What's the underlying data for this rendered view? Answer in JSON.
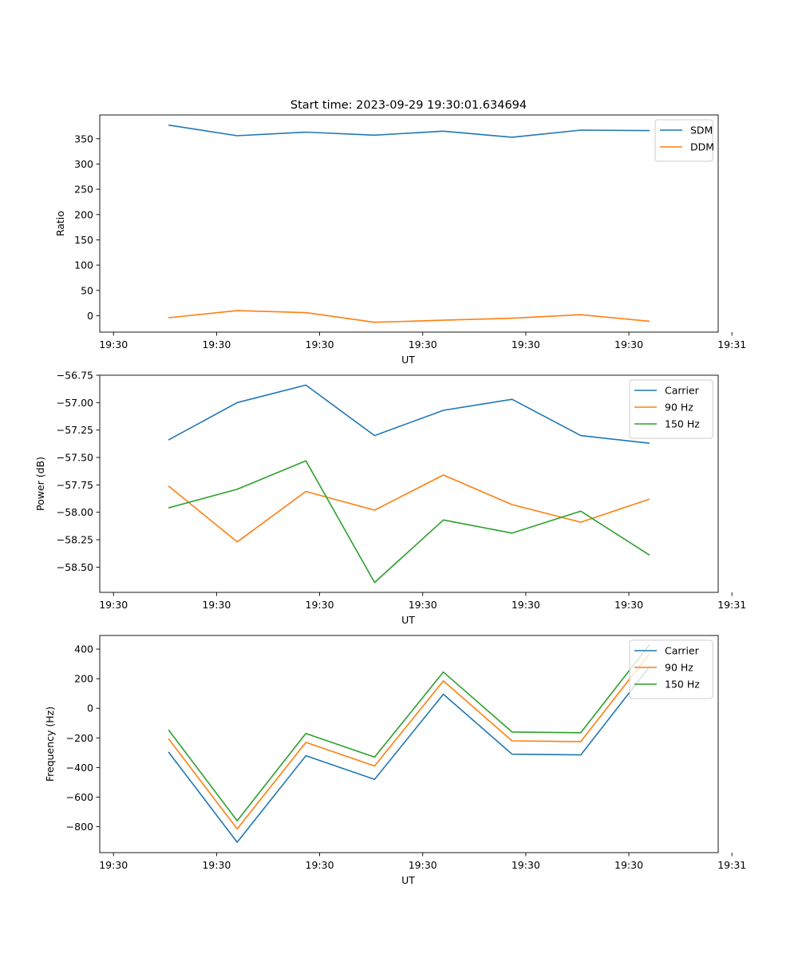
{
  "title": "Start time: 2023-09-29 19:30:01.634694",
  "chart_data": [
    {
      "type": "line",
      "xlabel": "UT",
      "ylabel": "Ratio",
      "xlim": [
        0,
        9
      ],
      "ylim": [
        -32.5,
        397
      ],
      "x_ticks": [
        {
          "v": 0.2,
          "label": "19:30"
        },
        {
          "v": 1.7,
          "label": "19:30"
        },
        {
          "v": 3.2,
          "label": "19:30"
        },
        {
          "v": 4.7,
          "label": "19:30"
        },
        {
          "v": 6.2,
          "label": "19:30"
        },
        {
          "v": 7.7,
          "label": "19:30"
        },
        {
          "v": 9.2,
          "label": "19:31"
        }
      ],
      "y_ticks": [
        {
          "v": 0,
          "label": "0"
        },
        {
          "v": 50,
          "label": "50"
        },
        {
          "v": 100,
          "label": "100"
        },
        {
          "v": 150,
          "label": "150"
        },
        {
          "v": 200,
          "label": "200"
        },
        {
          "v": 250,
          "label": "250"
        },
        {
          "v": 300,
          "label": "300"
        },
        {
          "v": 350,
          "label": "350"
        }
      ],
      "legend_location": "upper right",
      "x": [
        1,
        2,
        3,
        4,
        5,
        6,
        7,
        8
      ],
      "series": [
        {
          "name": "SDM",
          "color": "#1f77b4",
          "values": [
            377,
            356,
            363,
            357,
            365,
            353,
            367,
            366
          ]
        },
        {
          "name": "DDM",
          "color": "#ff7f0e",
          "values": [
            -4,
            10,
            6,
            -13,
            -9,
            -5,
            2,
            -11
          ]
        }
      ]
    },
    {
      "type": "line",
      "xlabel": "UT",
      "ylabel": "Power (dB)",
      "xlim": [
        0,
        9
      ],
      "ylim": [
        -58.73,
        -56.75
      ],
      "x_ticks": [
        {
          "v": 0.2,
          "label": "19:30"
        },
        {
          "v": 1.7,
          "label": "19:30"
        },
        {
          "v": 3.2,
          "label": "19:30"
        },
        {
          "v": 4.7,
          "label": "19:30"
        },
        {
          "v": 6.2,
          "label": "19:30"
        },
        {
          "v": 7.7,
          "label": "19:30"
        },
        {
          "v": 9.2,
          "label": "19:31"
        }
      ],
      "y_ticks": [
        {
          "v": -56.75,
          "label": "−56.75"
        },
        {
          "v": -57.0,
          "label": "−57.00"
        },
        {
          "v": -57.25,
          "label": "−57.25"
        },
        {
          "v": -57.5,
          "label": "−57.50"
        },
        {
          "v": -57.75,
          "label": "−57.75"
        },
        {
          "v": -58.0,
          "label": "−58.00"
        },
        {
          "v": -58.25,
          "label": "−58.25"
        },
        {
          "v": -58.5,
          "label": "−58.50"
        }
      ],
      "legend_location": "upper right",
      "x": [
        1,
        2,
        3,
        4,
        5,
        6,
        7,
        8
      ],
      "series": [
        {
          "name": "Carrier",
          "color": "#1f77b4",
          "values": [
            -57.34,
            -57.0,
            -56.84,
            -57.3,
            -57.07,
            -56.97,
            -57.3,
            -57.37
          ]
        },
        {
          "name": "90 Hz",
          "color": "#ff7f0e",
          "values": [
            -57.76,
            -58.27,
            -57.81,
            -57.98,
            -57.66,
            -57.93,
            -58.09,
            -57.88
          ]
        },
        {
          "name": "150 Hz",
          "color": "#2ca02c",
          "values": [
            -57.96,
            -57.79,
            -57.53,
            -58.64,
            -58.07,
            -58.19,
            -57.99,
            -58.39
          ]
        }
      ]
    },
    {
      "type": "line",
      "xlabel": "UT",
      "ylabel": "Frequency (Hz)",
      "xlim": [
        0,
        9
      ],
      "ylim": [
        -975,
        492
      ],
      "x_ticks": [
        {
          "v": 0.2,
          "label": "19:30"
        },
        {
          "v": 1.7,
          "label": "19:30"
        },
        {
          "v": 3.2,
          "label": "19:30"
        },
        {
          "v": 4.7,
          "label": "19:30"
        },
        {
          "v": 6.2,
          "label": "19:30"
        },
        {
          "v": 7.7,
          "label": "19:30"
        },
        {
          "v": 9.2,
          "label": "19:31"
        }
      ],
      "y_ticks": [
        {
          "v": 400,
          "label": "400"
        },
        {
          "v": 200,
          "label": "200"
        },
        {
          "v": 0,
          "label": "0"
        },
        {
          "v": -200,
          "label": "−200"
        },
        {
          "v": -400,
          "label": "−400"
        },
        {
          "v": -600,
          "label": "−600"
        },
        {
          "v": -800,
          "label": "−800"
        }
      ],
      "legend_location": "upper right",
      "x": [
        1,
        2,
        3,
        4,
        5,
        6,
        7,
        8
      ],
      "series": [
        {
          "name": "Carrier",
          "color": "#1f77b4",
          "values": [
            -295,
            -905,
            -320,
            -480,
            95,
            -310,
            -315,
            280
          ]
        },
        {
          "name": "90 Hz",
          "color": "#ff7f0e",
          "values": [
            -205,
            -815,
            -230,
            -390,
            185,
            -220,
            -225,
            370
          ]
        },
        {
          "name": "150 Hz",
          "color": "#2ca02c",
          "values": [
            -145,
            -760,
            -170,
            -330,
            245,
            -160,
            -165,
            430
          ]
        }
      ]
    }
  ]
}
